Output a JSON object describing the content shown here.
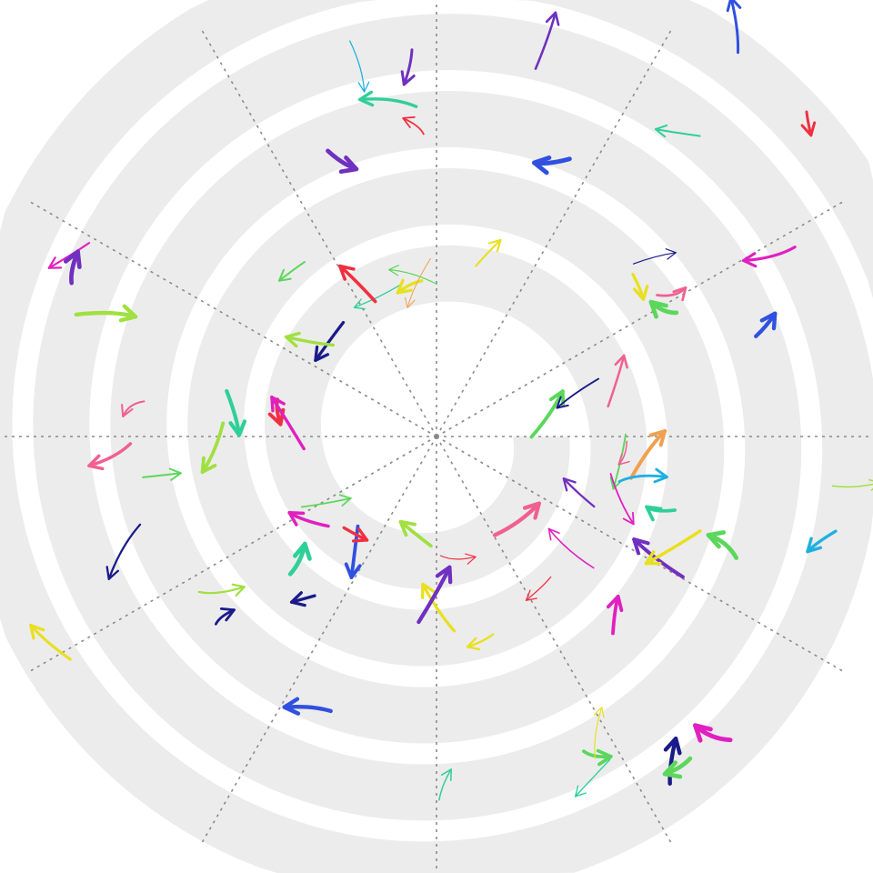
{
  "diagram": {
    "background_color": "#ffffff",
    "band_color": "#ececec",
    "spoke_color": "#8a8a8a",
    "spoke_count": 12,
    "rings": 5,
    "arrow_colors": {
      "green": "#5bd75b",
      "teal": "#2fcf9a",
      "orange": "#f0a050",
      "magenta": "#e020c0",
      "navy": "#1a1a8a",
      "purple": "#7030c0",
      "red": "#f03040",
      "yellow": "#e8e020",
      "cyan": "#20b0e0",
      "blue": "#3050e0",
      "pink": "#f06090",
      "lime": "#a0e040"
    }
  }
}
